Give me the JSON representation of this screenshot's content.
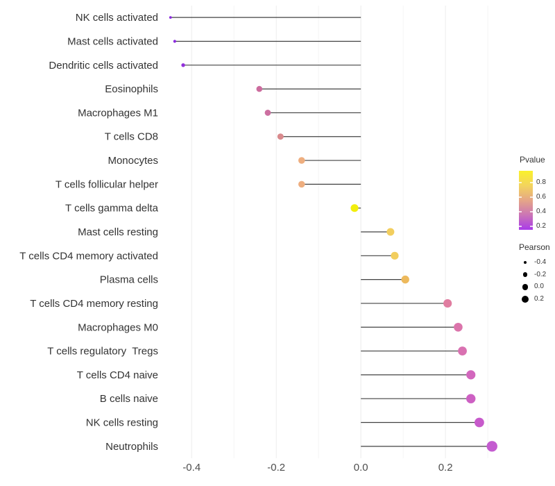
{
  "chart_data": {
    "type": "lollipop",
    "orientation": "horizontal",
    "title": "",
    "xlabel": "",
    "ylabel": "",
    "xlim": [
      -0.466,
      0.349
    ],
    "grid": "vertical-only",
    "grid_major": [
      -0.4,
      -0.2,
      0.0,
      0.2
    ],
    "grid_minor": [
      -0.3,
      -0.1,
      0.1,
      0.3
    ],
    "x_ticks": [
      {
        "value": -0.4,
        "label": "-0.4"
      },
      {
        "value": -0.2,
        "label": "-0.2"
      },
      {
        "value": 0.0,
        "label": "0.0"
      },
      {
        "value": 0.2,
        "label": "0.2"
      }
    ],
    "points": [
      {
        "label": "NK cells activated",
        "pearson": -0.45,
        "pvalue": 0.16,
        "color": "#8B2BDF",
        "radius": 1.9
      },
      {
        "label": "Mast cells activated",
        "pearson": -0.44,
        "pvalue": 0.16,
        "color": "#8B2BDF",
        "radius": 2.1
      },
      {
        "label": "Dendritic cells activated",
        "pearson": -0.42,
        "pvalue": 0.19,
        "color": "#9230DB",
        "radius": 2.7
      },
      {
        "label": "Eosinophils",
        "pearson": -0.24,
        "pvalue": 0.5,
        "color": "#CC6C9E",
        "radius": 4.3
      },
      {
        "label": "Macrophages M1",
        "pearson": -0.22,
        "pvalue": 0.5,
        "color": "#CC6FA0",
        "radius": 4.4
      },
      {
        "label": "T cells CD8",
        "pearson": -0.19,
        "pvalue": 0.55,
        "color": "#D98A8D",
        "radius": 4.5
      },
      {
        "label": "Monocytes",
        "pearson": -0.14,
        "pvalue": 0.66,
        "color": "#EEAE7F",
        "radius": 4.8
      },
      {
        "label": "T cells follicular helper",
        "pearson": -0.14,
        "pvalue": 0.66,
        "color": "#EEAE7F",
        "radius": 4.8
      },
      {
        "label": "T cells gamma delta",
        "pearson": -0.015,
        "pvalue": 0.95,
        "color": "#F2EE0D",
        "radius": 5.6
      },
      {
        "label": "Mast cells resting",
        "pearson": 0.07,
        "pvalue": 0.8,
        "color": "#F2CE5E",
        "radius": 5.5
      },
      {
        "label": "T cells CD4 memory activated",
        "pearson": 0.08,
        "pvalue": 0.8,
        "color": "#F2CE5E",
        "radius": 5.6
      },
      {
        "label": "Plasma cells",
        "pearson": 0.105,
        "pvalue": 0.72,
        "color": "#EDB95C",
        "radius": 5.7
      },
      {
        "label": "T cells CD4 memory resting",
        "pearson": 0.205,
        "pvalue": 0.48,
        "color": "#E07DA0",
        "radius": 6.1
      },
      {
        "label": "Macrophages M0",
        "pearson": 0.23,
        "pvalue": 0.45,
        "color": "#DB74AB",
        "radius": 6.3
      },
      {
        "label": "T cells regulatory  Tregs",
        "pearson": 0.24,
        "pvalue": 0.43,
        "color": "#D971B1",
        "radius": 6.4
      },
      {
        "label": "T cells CD4 naive",
        "pearson": 0.26,
        "pvalue": 0.38,
        "color": "#D267BD",
        "radius": 6.6
      },
      {
        "label": "B cells naive",
        "pearson": 0.26,
        "pvalue": 0.35,
        "color": "#CD60C3",
        "radius": 6.7
      },
      {
        "label": "NK cells resting",
        "pearson": 0.28,
        "pvalue": 0.31,
        "color": "#C75ACB",
        "radius": 6.9
      },
      {
        "label": "Neutrophils",
        "pearson": 0.31,
        "pvalue": 0.28,
        "color": "#C45CD0",
        "radius": 7.7
      }
    ],
    "legend_position": "right"
  },
  "legend": {
    "pvalue": {
      "title": "Pvalue",
      "range": [
        0.152,
        0.96
      ],
      "ticks": [
        {
          "value": 0.8,
          "label": "0.8"
        },
        {
          "value": 0.6,
          "label": "0.6"
        },
        {
          "value": 0.4,
          "label": "0.4"
        },
        {
          "value": 0.2,
          "label": "0.2"
        }
      ],
      "gradient_top_to_bottom": [
        "#FAF12B",
        "#F3D45D",
        "#E5A687",
        "#CB74B6",
        "#A93BE9"
      ]
    },
    "pearson": {
      "title": "Pearson",
      "items": [
        {
          "label": "-0.4",
          "radius": 2.3
        },
        {
          "label": "-0.2",
          "radius": 3.3
        },
        {
          "label": "0.0",
          "radius": 4.3
        },
        {
          "label": "0.2",
          "radius": 5.1
        }
      ],
      "dot_color": "#000000"
    }
  },
  "colors": {
    "background": "#FFFFFF",
    "stem": "#404040",
    "grid_major": "#ECECEC",
    "grid_minor": "#F5F5F5",
    "axis_text": "#4D4D4D",
    "label_text": "#333333"
  }
}
